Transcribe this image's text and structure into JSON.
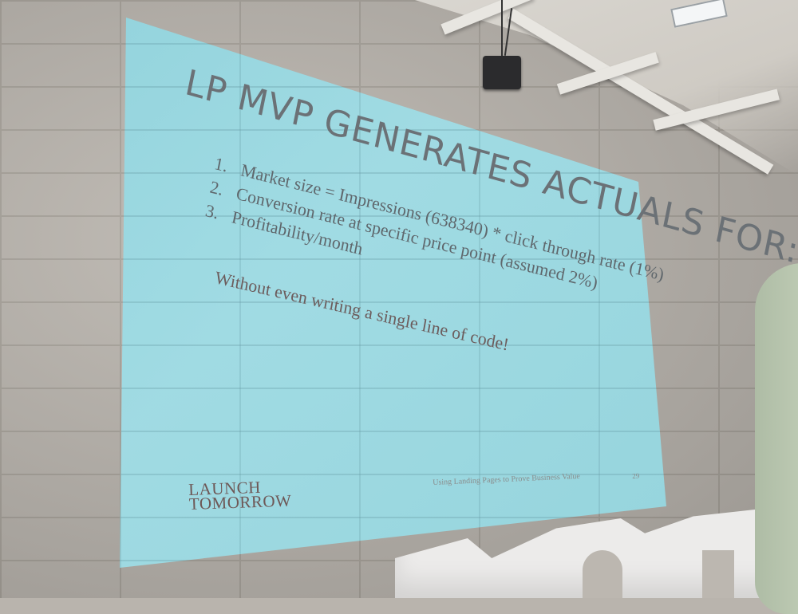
{
  "slide": {
    "title": "LP MVP GENERATES ACTUALS FOR:",
    "list": [
      {
        "num": "1.",
        "text": "Market size = Impressions (638340) * click through rate (1%)"
      },
      {
        "num": "2.",
        "text": "Conversion rate at specific price point (assumed 2%)"
      },
      {
        "num": "3.",
        "text": "Profitability/month"
      }
    ],
    "note": "Without even writing a single line of code!",
    "logo": {
      "line1": "LAUNCH",
      "line2": "TOMORROW"
    },
    "footer": "Using Landing Pages to Prove Business Value",
    "page_number": "29"
  },
  "colors": {
    "projection": "#9fdde6",
    "wall": "#bcb7b0",
    "logo": "#6e5857"
  }
}
